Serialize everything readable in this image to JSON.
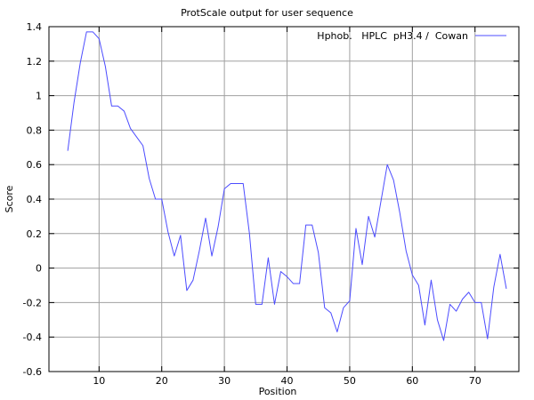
{
  "chart_data": {
    "type": "line",
    "title": "ProtScale output for user sequence",
    "xlabel": "Position",
    "ylabel": "Score",
    "xlim": [
      2,
      77
    ],
    "ylim": [
      -0.6,
      1.4
    ],
    "xticks": [
      10,
      20,
      30,
      40,
      50,
      60,
      70
    ],
    "yticks": [
      -0.6,
      -0.4,
      -0.2,
      0,
      0.2,
      0.4,
      0.6,
      0.8,
      1,
      1.2,
      1.4
    ],
    "ytick_labels": [
      "-0.6",
      "-0.4",
      "-0.2",
      "0",
      "0.2",
      "0.4",
      "0.6",
      "0.8",
      "1",
      "1.2",
      "1.4"
    ],
    "grid": true,
    "legend_position": "top-right",
    "series": [
      {
        "name": "Hphob.   HPLC  pH3.4 /  Cowan",
        "color": "#4c4cff",
        "x": [
          5,
          6,
          7,
          8,
          9,
          10,
          11,
          12,
          13,
          14,
          15,
          16,
          17,
          18,
          19,
          20,
          21,
          22,
          23,
          24,
          25,
          26,
          27,
          28,
          29,
          30,
          31,
          32,
          33,
          34,
          35,
          36,
          37,
          38,
          39,
          40,
          41,
          42,
          43,
          44,
          45,
          46,
          47,
          48,
          49,
          50,
          51,
          52,
          53,
          54,
          55,
          56,
          57,
          58,
          59,
          60,
          61,
          62,
          63,
          64,
          65,
          66,
          67,
          68,
          69,
          70,
          71,
          72,
          73,
          74,
          75
        ],
        "values": [
          0.68,
          0.96,
          1.19,
          1.37,
          1.37,
          1.33,
          1.17,
          0.94,
          0.94,
          0.91,
          0.81,
          0.76,
          0.71,
          0.52,
          0.4,
          0.4,
          0.21,
          0.07,
          0.19,
          -0.13,
          -0.07,
          0.1,
          0.29,
          0.07,
          0.24,
          0.46,
          0.49,
          0.49,
          0.49,
          0.2,
          -0.21,
          -0.21,
          0.06,
          -0.21,
          -0.02,
          -0.05,
          -0.09,
          -0.09,
          0.25,
          0.25,
          0.09,
          -0.23,
          -0.26,
          -0.37,
          -0.23,
          -0.19,
          0.23,
          0.02,
          0.3,
          0.18,
          0.39,
          0.6,
          0.51,
          0.32,
          0.1,
          -0.04,
          -0.1,
          -0.33,
          -0.07,
          -0.3,
          -0.42,
          -0.21,
          -0.25,
          -0.18,
          -0.14,
          -0.2,
          -0.2,
          -0.41,
          -0.11,
          0.08,
          -0.12
        ]
      }
    ]
  }
}
